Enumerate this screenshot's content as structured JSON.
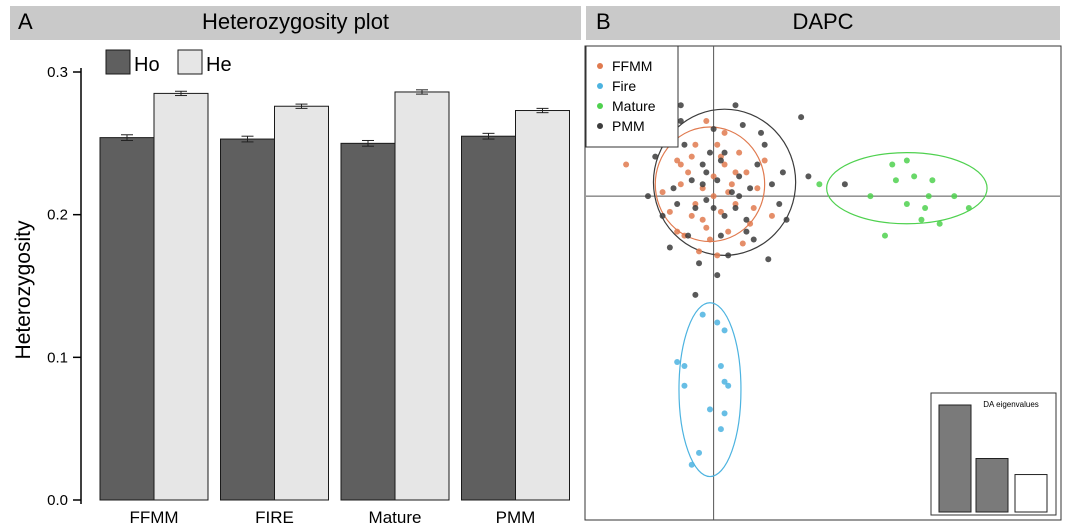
{
  "panelA": {
    "letter": "A",
    "title": "Heterozygosity plot"
  },
  "panelB": {
    "letter": "B",
    "title": "DAPC"
  },
  "colors": {
    "header_bg": "#c9c9c9",
    "ho": "#5f5f5f",
    "he": "#e6e6e6",
    "ffmm": "#e07a4f",
    "fire": "#4cb3e0",
    "mature": "#4fd14f",
    "pmm": "#3c3c3c",
    "eig_dark": "#7a7a7a"
  },
  "chart_data": [
    {
      "type": "bar",
      "categories": [
        "FFMM",
        "FIRE",
        "Mature",
        "PMM"
      ],
      "series": [
        {
          "name": "Ho",
          "values": [
            0.254,
            0.253,
            0.25,
            0.255
          ],
          "errors": [
            0.002,
            0.002,
            0.002,
            0.002
          ]
        },
        {
          "name": "He",
          "values": [
            0.285,
            0.276,
            0.286,
            0.273
          ],
          "errors": [
            0.0015,
            0.0015,
            0.0015,
            0.0015
          ]
        }
      ],
      "ylabel": "Heterozygosity",
      "ylim": [
        0,
        0.3
      ],
      "yticks": [
        "0.0",
        "0.1",
        "0.2",
        "0.3"
      ],
      "legend": "top-left",
      "grid": false
    },
    {
      "type": "scatter",
      "axes": "none",
      "legend": "top-left",
      "series": [
        {
          "name": "FFMM",
          "points": [
            [
              -0.6,
              1.0
            ],
            [
              -0.3,
              -0.6
            ],
            [
              0.3,
              0.8
            ],
            [
              0.6,
              -0.2
            ],
            [
              -0.9,
              0.3
            ],
            [
              0.1,
              1.3
            ],
            [
              -0.1,
              -1.1
            ],
            [
              0.9,
              0.6
            ],
            [
              -0.5,
              -0.2
            ],
            [
              0.4,
              -0.9
            ],
            [
              -1.2,
              -0.4
            ],
            [
              1.2,
              0.2
            ],
            [
              0.0,
              0.5
            ],
            [
              -0.3,
              0.2
            ],
            [
              0.7,
              1.1
            ],
            [
              -0.8,
              -1.0
            ],
            [
              0.2,
              -0.4
            ],
            [
              -1.0,
              0.9
            ],
            [
              1.0,
              -0.7
            ],
            [
              0.5,
              0.3
            ],
            [
              -0.4,
              -1.4
            ],
            [
              0.3,
              1.6
            ],
            [
              -0.7,
              0.6
            ],
            [
              0.8,
              -1.2
            ],
            [
              0.0,
              0.0
            ],
            [
              -1.4,
              0.1
            ],
            [
              1.4,
              0.9
            ],
            [
              -0.2,
              -0.8
            ],
            [
              0.6,
              0.6
            ],
            [
              -0.6,
              -0.5
            ],
            [
              0.2,
              1.0
            ],
            [
              -1.0,
              -0.9
            ],
            [
              1.1,
              -0.3
            ],
            [
              -0.5,
              1.3
            ],
            [
              0.4,
              0.1
            ],
            [
              -0.9,
              0.8
            ],
            [
              -2.4,
              0.8
            ],
            [
              1.6,
              -0.5
            ],
            [
              -0.2,
              1.9
            ],
            [
              0.1,
              -1.5
            ]
          ]
        },
        {
          "name": "Fire",
          "points": [
            [
              -1.0,
              -4.2
            ],
            [
              -0.3,
              -3.0
            ],
            [
              0.1,
              -3.2
            ],
            [
              -0.8,
              -4.8
            ],
            [
              -0.1,
              -5.4
            ],
            [
              0.2,
              -5.9
            ],
            [
              -0.4,
              -6.5
            ],
            [
              -0.6,
              -6.8
            ],
            [
              0.3,
              -4.7
            ],
            [
              0.4,
              -4.8
            ],
            [
              0.3,
              -5.5
            ],
            [
              -0.8,
              -4.3
            ],
            [
              0.2,
              -4.3
            ],
            [
              0.3,
              -3.4
            ]
          ]
        },
        {
          "name": "Mature",
          "points": [
            [
              2.9,
              0.3
            ],
            [
              4.3,
              0.0
            ],
            [
              4.9,
              0.8
            ],
            [
              5.3,
              0.9
            ],
            [
              5.5,
              0.5
            ],
            [
              5.9,
              0.0
            ],
            [
              6.0,
              0.4
            ],
            [
              5.3,
              -0.2
            ],
            [
              5.8,
              -0.3
            ],
            [
              6.6,
              0.0
            ],
            [
              7.0,
              -0.3
            ],
            [
              5.7,
              -0.6
            ],
            [
              6.2,
              -0.7
            ],
            [
              4.7,
              -1.0
            ],
            [
              5.0,
              0.4
            ]
          ]
        },
        {
          "name": "PMM",
          "points": [
            [
              -0.8,
              1.3
            ],
            [
              0.3,
              1.1
            ],
            [
              0.7,
              0.5
            ],
            [
              -0.5,
              -0.3
            ],
            [
              0.9,
              -0.6
            ],
            [
              -1.1,
              0.2
            ],
            [
              0.0,
              1.7
            ],
            [
              0.2,
              -1.0
            ],
            [
              1.4,
              1.3
            ],
            [
              -1.4,
              -0.5
            ],
            [
              0.5,
              0.1
            ],
            [
              -0.3,
              0.8
            ],
            [
              1.1,
              -1.1
            ],
            [
              -0.7,
              -1.0
            ],
            [
              0.1,
              0.4
            ],
            [
              -0.2,
              -0.1
            ],
            [
              1.6,
              0.3
            ],
            [
              -1.6,
              1.0
            ],
            [
              0.8,
              1.8
            ],
            [
              0.4,
              -1.5
            ],
            [
              -0.9,
              1.9
            ],
            [
              1.2,
              0.8
            ],
            [
              -0.4,
              -1.7
            ],
            [
              0.6,
              -0.3
            ],
            [
              -1.2,
              -1.3
            ],
            [
              1.8,
              -0.2
            ],
            [
              -0.1,
              1.1
            ],
            [
              0.3,
              -0.5
            ],
            [
              1.0,
              0.2
            ],
            [
              -0.6,
              0.4
            ],
            [
              2.4,
              2.0
            ],
            [
              2.6,
              0.5
            ],
            [
              -0.9,
              2.3
            ],
            [
              -0.5,
              -2.5
            ],
            [
              0.1,
              -2.0
            ],
            [
              0.6,
              2.3
            ],
            [
              1.9,
              0.6
            ],
            [
              1.5,
              -1.6
            ],
            [
              -1.8,
              0.0
            ],
            [
              -0.3,
              0.3
            ],
            [
              0.2,
              0.9
            ],
            [
              0.9,
              -0.9
            ],
            [
              -1.0,
              -0.2
            ],
            [
              1.3,
              1.6
            ],
            [
              0.0,
              -0.3
            ],
            [
              -0.2,
              0.6
            ],
            [
              2.0,
              -0.6
            ],
            [
              -1.3,
              1.5
            ],
            [
              0.7,
              0.0
            ],
            [
              3.6,
              0.3
            ]
          ]
        }
      ],
      "ellipses": [
        {
          "group": "FFMM",
          "cx": -0.1,
          "cy": 0.3,
          "rx": 1.5,
          "ry": 1.45
        },
        {
          "group": "PMM",
          "cx": 0.3,
          "cy": 0.35,
          "rx": 1.95,
          "ry": 1.85
        },
        {
          "group": "Fire",
          "cx": -0.1,
          "cy": -4.9,
          "rx": 0.85,
          "ry": 2.2
        },
        {
          "group": "Mature",
          "cx": 5.3,
          "cy": 0.2,
          "rx": 2.2,
          "ry": 0.9
        }
      ],
      "xlim": [
        -3.5,
        9.5
      ],
      "ylim": [
        -8.2,
        3.8
      ],
      "inset": {
        "title": "DA eigenvalues",
        "values": [
          1.0,
          0.5,
          0.35
        ]
      }
    }
  ]
}
